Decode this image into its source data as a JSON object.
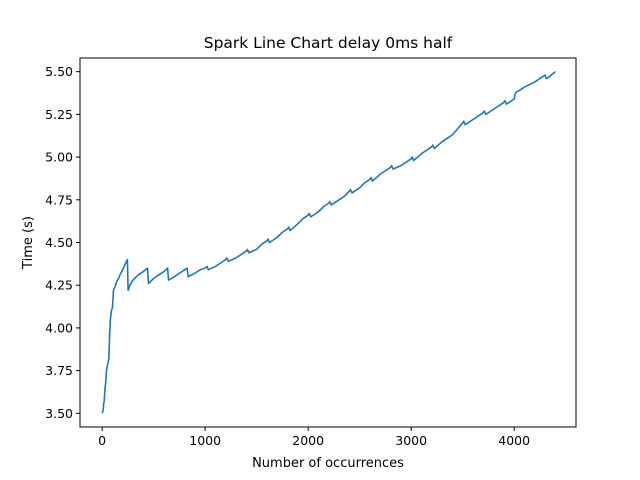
{
  "chart_data": {
    "type": "line",
    "title": "Spark Line Chart delay 0ms half",
    "xlabel": "Number of occurrences",
    "ylabel": "Time (s)",
    "xlim": [
      -215,
      4600
    ],
    "ylim": [
      3.42,
      5.58
    ],
    "xticks": [
      0,
      1000,
      2000,
      3000,
      4000
    ],
    "xtick_labels": [
      "0",
      "1000",
      "2000",
      "3000",
      "4000"
    ],
    "yticks": [
      3.5,
      3.75,
      4.0,
      4.25,
      4.5,
      4.75,
      5.0,
      5.25,
      5.5
    ],
    "ytick_labels": [
      "3.50",
      "3.75",
      "4.00",
      "4.25",
      "4.50",
      "4.75",
      "5.00",
      "5.25",
      "5.50"
    ],
    "grid": false,
    "series": [
      {
        "name": "delay 0ms half",
        "color": "#1f77b4",
        "x": [
          0,
          10,
          15,
          20,
          28,
          35,
          42,
          50,
          58,
          65,
          72,
          80,
          90,
          100,
          110,
          125,
          140,
          160,
          180,
          200,
          220,
          245,
          252,
          270,
          300,
          350,
          400,
          440,
          450,
          500,
          550,
          600,
          635,
          645,
          700,
          750,
          800,
          825,
          835,
          900,
          950,
          1000,
          1020,
          1030,
          1100,
          1150,
          1200,
          1210,
          1225,
          1300,
          1350,
          1400,
          1410,
          1425,
          1500,
          1550,
          1600,
          1610,
          1625,
          1700,
          1750,
          1800,
          1810,
          1825,
          1900,
          1950,
          2000,
          2010,
          2025,
          2100,
          2150,
          2200,
          2210,
          2225,
          2300,
          2350,
          2400,
          2410,
          2425,
          2500,
          2550,
          2600,
          2610,
          2625,
          2700,
          2750,
          2800,
          2810,
          2825,
          2900,
          2950,
          3000,
          3010,
          3025,
          3100,
          3150,
          3200,
          3210,
          3225,
          3300,
          3350,
          3400,
          3500,
          3510,
          3525,
          3600,
          3650,
          3700,
          3710,
          3725,
          3800,
          3850,
          3900,
          3910,
          3925,
          4000,
          4010,
          4020,
          4050,
          4100,
          4200,
          4300,
          4310,
          4320,
          4400
        ],
        "y": [
          3.5,
          3.52,
          3.56,
          3.57,
          3.65,
          3.68,
          3.75,
          3.78,
          3.8,
          3.82,
          3.95,
          4.05,
          4.1,
          4.12,
          4.22,
          4.24,
          4.27,
          4.29,
          4.32,
          4.34,
          4.37,
          4.4,
          4.22,
          4.25,
          4.28,
          4.31,
          4.33,
          4.35,
          4.26,
          4.29,
          4.31,
          4.33,
          4.35,
          4.28,
          4.3,
          4.32,
          4.34,
          4.35,
          4.3,
          4.32,
          4.34,
          4.35,
          4.36,
          4.34,
          4.36,
          4.38,
          4.4,
          4.41,
          4.39,
          4.41,
          4.43,
          4.45,
          4.46,
          4.44,
          4.46,
          4.49,
          4.51,
          4.52,
          4.5,
          4.53,
          4.56,
          4.58,
          4.59,
          4.57,
          4.61,
          4.64,
          4.66,
          4.67,
          4.65,
          4.68,
          4.71,
          4.73,
          4.74,
          4.72,
          4.75,
          4.77,
          4.8,
          4.81,
          4.79,
          4.82,
          4.85,
          4.87,
          4.88,
          4.86,
          4.9,
          4.92,
          4.94,
          4.95,
          4.93,
          4.95,
          4.97,
          4.99,
          5.0,
          4.98,
          5.02,
          5.04,
          5.06,
          5.07,
          5.05,
          5.09,
          5.11,
          5.13,
          5.2,
          5.21,
          5.19,
          5.22,
          5.24,
          5.26,
          5.27,
          5.25,
          5.28,
          5.3,
          5.32,
          5.33,
          5.31,
          5.34,
          5.37,
          5.38,
          5.39,
          5.41,
          5.44,
          5.48,
          5.46,
          5.46,
          5.5
        ]
      }
    ]
  }
}
